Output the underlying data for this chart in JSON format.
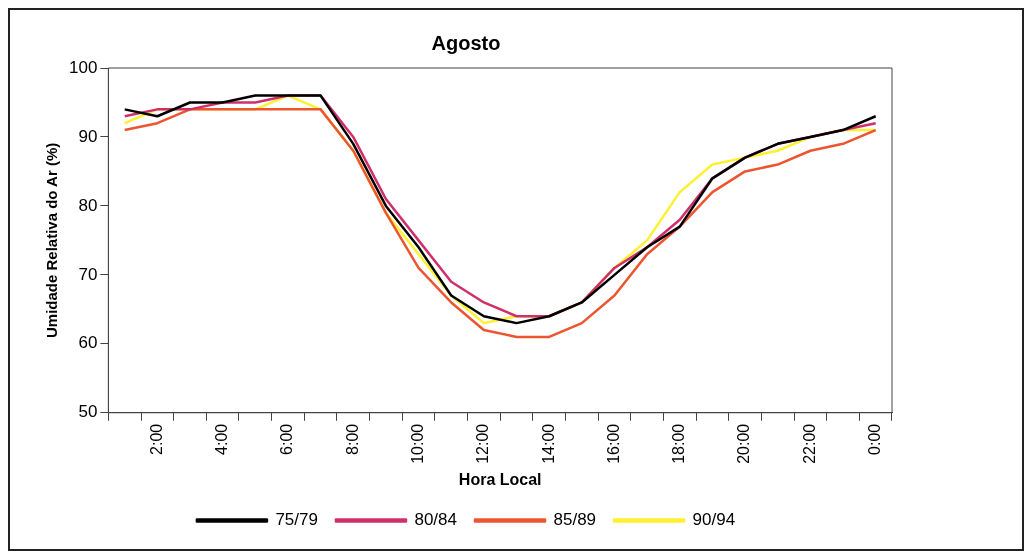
{
  "chart_data": {
    "type": "line",
    "title": "Agosto",
    "xlabel": "Hora Local",
    "ylabel": "Umidade Relativa do Ar (%)",
    "categories": [
      null,
      "2:00",
      null,
      "4:00",
      null,
      "6:00",
      null,
      "8:00",
      null,
      "10:00",
      null,
      "12:00",
      null,
      "14:00",
      null,
      "16:00",
      null,
      "18:00",
      null,
      "20:00",
      null,
      "22:00",
      null,
      "0:00"
    ],
    "series": [
      {
        "name": "75/79",
        "color": "#000000",
        "values": [
          94,
          93,
          95,
          95,
          96,
          96,
          96,
          89,
          80,
          74,
          67,
          64,
          63,
          64,
          66,
          70,
          74,
          77,
          84,
          87,
          89,
          90,
          91,
          93
        ]
      },
      {
        "name": "80/84",
        "color": "#d02f6c",
        "values": [
          93,
          94,
          94,
          95,
          95,
          96,
          96,
          90,
          81,
          75,
          69,
          66,
          64,
          64,
          66,
          71,
          74,
          78,
          84,
          87,
          89,
          90,
          91,
          92
        ]
      },
      {
        "name": "85/89",
        "color": "#ec5530",
        "values": [
          91,
          92,
          94,
          94,
          94,
          94,
          94,
          88,
          79,
          71,
          66,
          62,
          61,
          61,
          63,
          67,
          73,
          77,
          82,
          85,
          86,
          88,
          89,
          91
        ]
      },
      {
        "name": "90/94",
        "color": "#fff030",
        "values": [
          92,
          94,
          94,
          94,
          94,
          96,
          94,
          88,
          79,
          73,
          67,
          63,
          64,
          64,
          66,
          71,
          75,
          82,
          86,
          87,
          88,
          90,
          91,
          91
        ]
      }
    ],
    "ylim": [
      50,
      100
    ],
    "yticks": [
      50,
      60,
      70,
      80,
      90,
      100
    ],
    "grid": false,
    "legend": "bottom",
    "marker": "none",
    "line_style": "solid"
  }
}
